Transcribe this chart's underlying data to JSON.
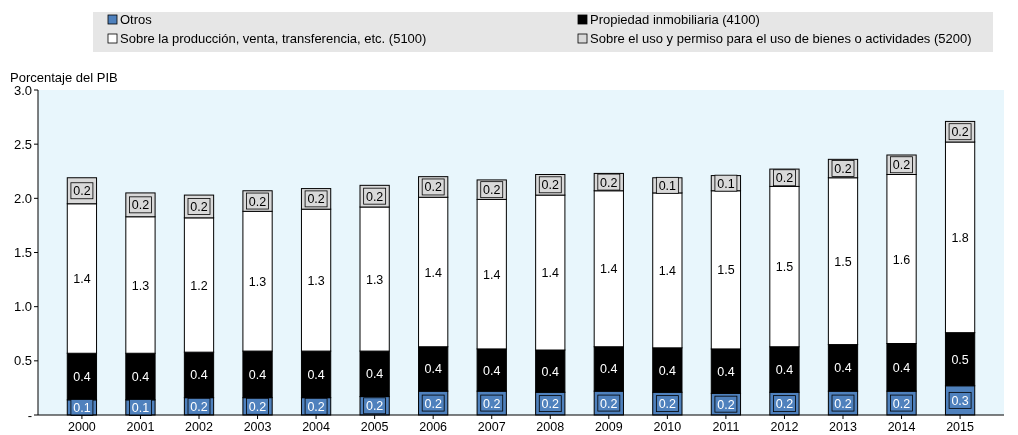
{
  "chart_data": {
    "type": "bar",
    "stacked": true,
    "ylabel": "Porcentaje del PIB",
    "categories": [
      "2000",
      "2001",
      "2002",
      "2003",
      "2004",
      "2005",
      "2006",
      "2007",
      "2008",
      "2009",
      "2010",
      "2011",
      "2012",
      "2013",
      "2014",
      "2015"
    ],
    "series": [
      {
        "name": "Otros",
        "color": "#4f81bd",
        "values": [
          0.14,
          0.14,
          0.16,
          0.16,
          0.16,
          0.17,
          0.22,
          0.22,
          0.21,
          0.22,
          0.21,
          0.2,
          0.21,
          0.22,
          0.22,
          0.27
        ],
        "value_labels": [
          "0.1",
          "0.1",
          "0.2",
          "0.2",
          "0.2",
          "0.2",
          "0.2",
          "0.2",
          "0.2",
          "0.2",
          "0.2",
          "0.2",
          "0.2",
          "0.2",
          "0.2",
          "0.3"
        ]
      },
      {
        "name": "Propiedad inmobiliaria (4100)",
        "color": "#000000",
        "values": [
          0.43,
          0.43,
          0.42,
          0.43,
          0.43,
          0.42,
          0.41,
          0.39,
          0.39,
          0.41,
          0.41,
          0.41,
          0.42,
          0.43,
          0.44,
          0.49
        ],
        "value_labels": [
          "0.4",
          "0.4",
          "0.4",
          "0.4",
          "0.4",
          "0.4",
          "0.4",
          "0.4",
          "0.4",
          "0.4",
          "0.4",
          "0.4",
          "0.4",
          "0.4",
          "0.4",
          "0.5"
        ]
      },
      {
        "name": "Sobre la producción, venta, transferencia, etc. (5100)",
        "color": "#ffffff",
        "values": [
          1.38,
          1.26,
          1.24,
          1.29,
          1.31,
          1.33,
          1.38,
          1.38,
          1.43,
          1.44,
          1.43,
          1.46,
          1.48,
          1.54,
          1.56,
          1.76
        ],
        "value_labels": [
          "1.4",
          "1.3",
          "1.2",
          "1.3",
          "1.3",
          "1.3",
          "1.4",
          "1.4",
          "1.4",
          "1.4",
          "1.4",
          "1.5",
          "1.5",
          "1.5",
          "1.6",
          "1.8"
        ]
      },
      {
        "name": "Sobre el uso y permiso para el uso de bienes o actividades (5200)",
        "color": "#d9d9d9",
        "values": [
          0.24,
          0.22,
          0.21,
          0.19,
          0.19,
          0.2,
          0.19,
          0.18,
          0.19,
          0.16,
          0.14,
          0.14,
          0.16,
          0.17,
          0.18,
          0.19
        ],
        "value_labels": [
          "0.2",
          "0.2",
          "0.2",
          "0.2",
          "0.2",
          "0.2",
          "0.2",
          "0.2",
          "0.2",
          "0.2",
          "0.1",
          "0.1",
          "0.2",
          "0.2",
          "0.2",
          "0.2"
        ]
      }
    ],
    "ylim": [
      0,
      3
    ],
    "yticks": [
      {
        "value": 0,
        "label": "-"
      },
      {
        "value": 0.5,
        "label": "0.5"
      },
      {
        "value": 1,
        "label": "1.0"
      },
      {
        "value": 1.5,
        "label": "1.5"
      },
      {
        "value": 2,
        "label": "2.0"
      },
      {
        "value": 2.5,
        "label": "2.5"
      },
      {
        "value": 3,
        "label": "3.0"
      }
    ],
    "legend": "top",
    "grid": false
  }
}
